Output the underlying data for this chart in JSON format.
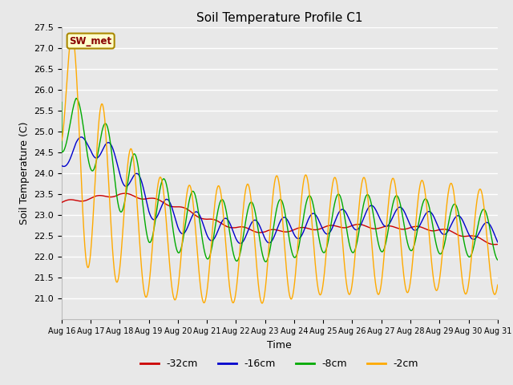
{
  "title": "Soil Temperature Profile C1",
  "xlabel": "Time",
  "ylabel": "Soil Temperature (C)",
  "ylim": [
    20.5,
    27.5
  ],
  "xlim": [
    0,
    15
  ],
  "xtick_labels": [
    "Aug 16",
    "Aug 17",
    "Aug 18",
    "Aug 19",
    "Aug 20",
    "Aug 21",
    "Aug 22",
    "Aug 23",
    "Aug 24",
    "Aug 25",
    "Aug 26",
    "Aug 27",
    "Aug 28",
    "Aug 29",
    "Aug 30",
    "Aug 31"
  ],
  "ytick_values": [
    21.0,
    21.5,
    22.0,
    22.5,
    23.0,
    23.5,
    24.0,
    24.5,
    25.0,
    25.5,
    26.0,
    26.5,
    27.0,
    27.5
  ],
  "colors": {
    "-32cm": "#cc0000",
    "-16cm": "#0000cc",
    "-8cm": "#00aa00",
    "-2cm": "#ffaa00"
  },
  "legend_label_box_color": "#ffffcc",
  "legend_label_text_color": "#880000",
  "legend_label_border_color": "#aa8800",
  "background_color": "#e8e8e8",
  "grid_color": "#ffffff",
  "annotation_text": "SW_met",
  "n_points": 1500
}
